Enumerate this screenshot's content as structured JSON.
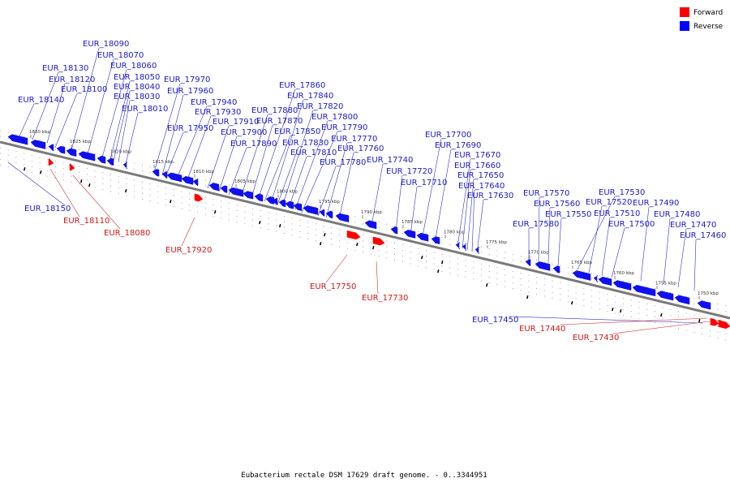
{
  "caption": "Eubacterium rectale DSM 17629 draft genome. - 0..3344951",
  "legend": [
    {
      "label": "Forward",
      "color": "#ff0000"
    },
    {
      "label": "Reverse",
      "color": "#0000ff"
    }
  ],
  "colors": {
    "forward": "#ff0000",
    "reverse": "#1010ee",
    "backbone": "#777777",
    "label_reverse": "#1a1acc",
    "label_forward": "#cc1a1a"
  },
  "ticks": [
    "1830 kbp",
    "1825 kbp",
    "1820 kbp",
    "1815 kbp",
    "1810 kbp",
    "1805 kbp",
    "1800 kbp",
    "1795 kbp",
    "1790 kbp",
    "1785 kbp",
    "1780 kbp",
    "1775 kbp",
    "1770 kbp",
    "1765 kbp",
    "1760 kbp",
    "1755 kbp",
    "1750 kbp"
  ],
  "reverse_genes": [
    "EUR_18140",
    "EUR_18130",
    "EUR_18120",
    "EUR_18100",
    "EUR_18090",
    "EUR_18070",
    "EUR_18060",
    "EUR_18050",
    "EUR_18040",
    "EUR_18030",
    "EUR_18010",
    "EUR_17970",
    "EUR_17960",
    "EUR_17950",
    "EUR_17940",
    "EUR_17930",
    "EUR_17910",
    "EUR_17900",
    "EUR_17890",
    "EUR_17880",
    "EUR_17870",
    "EUR_17860",
    "EUR_17850",
    "EUR_17840",
    "EUR_17830",
    "EUR_17820",
    "EUR_17810",
    "EUR_17800",
    "EUR_17790",
    "EUR_17780",
    "EUR_17770",
    "EUR_17760",
    "EUR_17740",
    "EUR_17720",
    "EUR_17710",
    "EUR_17700",
    "EUR_17690",
    "EUR_17670",
    "EUR_17660",
    "EUR_17650",
    "EUR_17640",
    "EUR_17630",
    "EUR_17580",
    "EUR_17570",
    "EUR_17560",
    "EUR_17550",
    "EUR_17530",
    "EUR_17520",
    "EUR_17510",
    "EUR_17500",
    "EUR_17490",
    "EUR_17480",
    "EUR_17470",
    "EUR_17460",
    "EUR_18150",
    "EUR_17450"
  ],
  "forward_genes": [
    "EUR_18110",
    "EUR_18080",
    "EUR_17920",
    "EUR_17750",
    "EUR_17730",
    "EUR_17440",
    "EUR_17430"
  ]
}
